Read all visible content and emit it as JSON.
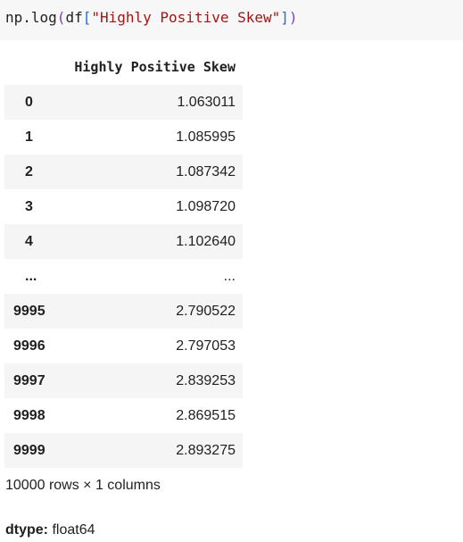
{
  "code": {
    "prefix": "np.log",
    "open_paren": "(",
    "var": "df",
    "open_bracket": "[",
    "string": "\"Highly Positive Skew\"",
    "close_bracket": "]",
    "close_paren": ")"
  },
  "table": {
    "column_header": "Highly Positive Skew",
    "rows": [
      {
        "index": "0",
        "value": "1.063011"
      },
      {
        "index": "1",
        "value": "1.085995"
      },
      {
        "index": "2",
        "value": "1.087342"
      },
      {
        "index": "3",
        "value": "1.098720"
      },
      {
        "index": "4",
        "value": "1.102640"
      },
      {
        "index": "...",
        "value": "..."
      },
      {
        "index": "9995",
        "value": "2.790522"
      },
      {
        "index": "9996",
        "value": "2.797053"
      },
      {
        "index": "9997",
        "value": "2.839253"
      },
      {
        "index": "9998",
        "value": "2.869515"
      },
      {
        "index": "9999",
        "value": "2.893275"
      }
    ]
  },
  "footer": {
    "shape": "10000 rows × 1 columns",
    "dtype_label": "dtype:",
    "dtype_value": "float64"
  }
}
